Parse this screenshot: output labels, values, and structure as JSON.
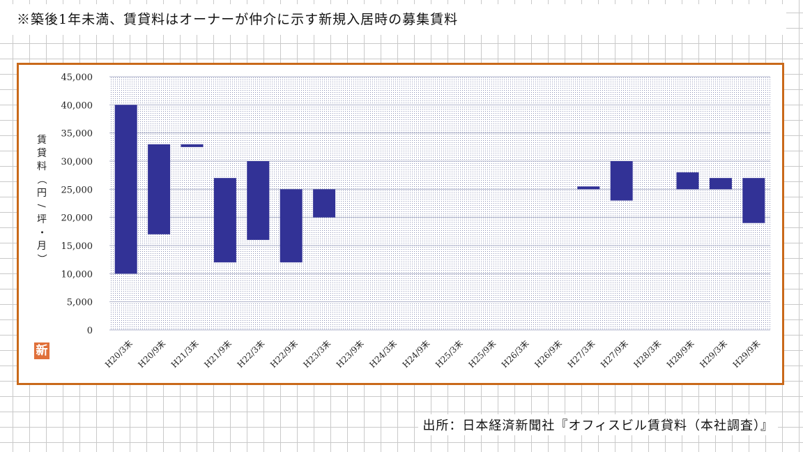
{
  "note": "※築後1年未満、賃貸料はオーナーが仲介に示す新規入居時の募集賃料",
  "source": "出所：日本経済新聞社『オフィスビル賃貸料（本社調査）』",
  "logo_char": "新",
  "colors": {
    "bar": "#323296",
    "frame": "#c9691a",
    "plot_dots": "#8a8fb4",
    "logo": "#e0703a"
  },
  "chart_data": {
    "type": "bar",
    "subtype": "floating-range",
    "title": "",
    "xlabel": "",
    "ylabel": "賃貸料（円/坪・月）",
    "ylim": [
      0,
      45000
    ],
    "yticks": [
      0,
      5000,
      10000,
      15000,
      20000,
      25000,
      30000,
      35000,
      40000,
      45000
    ],
    "ytick_labels": [
      "0",
      "5,000",
      "10,000",
      "15,000",
      "20,000",
      "25,000",
      "30,000",
      "35,000",
      "40,000",
      "45,000"
    ],
    "grid": true,
    "categories": [
      "H20/3末",
      "H20/9末",
      "H21/3末",
      "H21/9末",
      "H22/3末",
      "H22/9末",
      "H23/3末",
      "H23/9末",
      "H24/3末",
      "H24/9末",
      "H25/3末",
      "H25/9末",
      "H26/3末",
      "H26/9末",
      "H27/3末",
      "H27/9末",
      "H28/3末",
      "H28/9末",
      "H29/3末",
      "H29/9末"
    ],
    "low": [
      10000,
      17000,
      32500,
      12000,
      16000,
      12000,
      20000,
      null,
      null,
      null,
      null,
      null,
      null,
      null,
      25000,
      23000,
      null,
      25000,
      25000,
      19000
    ],
    "high": [
      40000,
      33000,
      33000,
      27000,
      30000,
      25000,
      25000,
      null,
      null,
      null,
      null,
      null,
      null,
      null,
      25500,
      30000,
      null,
      28000,
      27000,
      27000
    ]
  }
}
